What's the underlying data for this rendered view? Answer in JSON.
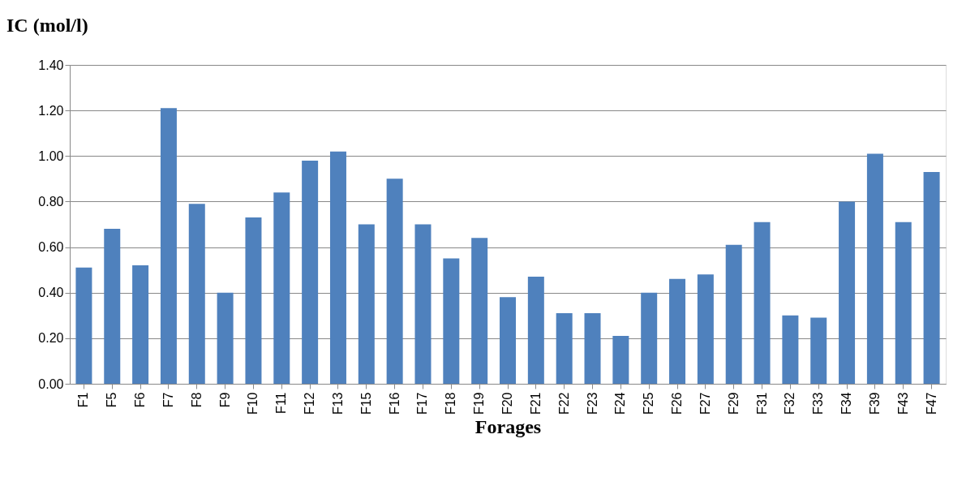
{
  "chart_data": {
    "type": "bar",
    "title": "IC (mol/l)",
    "xlabel": "Forages",
    "categories": [
      "F1",
      "F5",
      "F6",
      "F7",
      "F8",
      "F9",
      "F10",
      "F11",
      "F12",
      "F13",
      "F15",
      "F16",
      "F17",
      "F18",
      "F19",
      "F20",
      "F21",
      "F22",
      "F23",
      "F24",
      "F25",
      "F26",
      "F27",
      "F29",
      "F31",
      "F32",
      "F33",
      "F34",
      "F39",
      "F43",
      "F47"
    ],
    "values": [
      0.51,
      0.68,
      0.52,
      1.21,
      0.79,
      0.4,
      0.73,
      0.84,
      0.98,
      1.02,
      0.7,
      0.9,
      0.7,
      0.55,
      0.64,
      0.38,
      0.47,
      0.31,
      0.31,
      0.21,
      0.4,
      0.46,
      0.48,
      0.61,
      0.71,
      0.3,
      0.29,
      0.8,
      1.01,
      0.71,
      0.93
    ],
    "color": "#4f81bd",
    "ylim": [
      0,
      1.4
    ],
    "yticks": [
      {
        "value": 0,
        "label": "0.00"
      },
      {
        "value": 0.2,
        "label": "0.20"
      },
      {
        "value": 0.4,
        "label": "0.40"
      },
      {
        "value": 0.6,
        "label": "0.60"
      },
      {
        "value": 0.8,
        "label": "0.80"
      },
      {
        "value": 1.0,
        "label": "1.00"
      },
      {
        "value": 1.2,
        "label": "1.20"
      },
      {
        "value": 1.4,
        "label": "1.40"
      }
    ],
    "grid": "y"
  }
}
